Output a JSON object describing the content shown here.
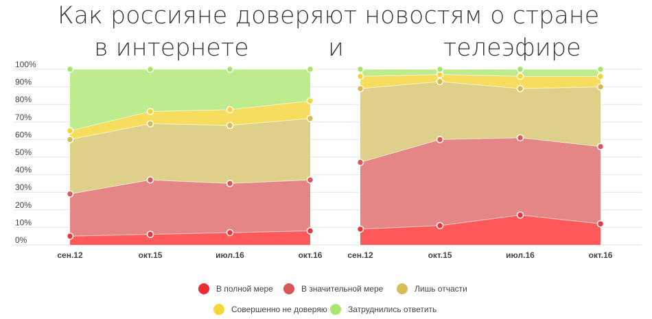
{
  "title": {
    "line1": "Как россияне доверяют новостям о стране",
    "line2_part1": "в интернете",
    "line2_part2": "и",
    "line2_part3": "телеэфире"
  },
  "chart_data": [
    {
      "type": "area",
      "stacking": "cumulative",
      "categories": [
        "сен.12",
        "окт.15",
        "июл.16",
        "окт.16"
      ],
      "ylim": [
        0,
        100
      ],
      "yticks": [
        "0%",
        "10%",
        "20%",
        "30%",
        "40%",
        "50%",
        "60%",
        "70%",
        "80%",
        "90%",
        "100%"
      ],
      "grid": true,
      "series": [
        {
          "name": "В полной мере",
          "cumulative": [
            5,
            6,
            7,
            8
          ],
          "color": "#ff5a5a",
          "marker": "#e8373e"
        },
        {
          "name": "В значительной мере",
          "cumulative": [
            29,
            37,
            35,
            37
          ],
          "color": "#e58686",
          "marker": "#d95a5a"
        },
        {
          "name": "Лишь отчасти",
          "cumulative": [
            60,
            69,
            68,
            72
          ],
          "color": "#dfd089",
          "marker": "#d4bb56"
        },
        {
          "name": "Совершенно не доверяю",
          "cumulative": [
            65,
            76,
            77,
            82
          ],
          "color": "#f6dd5e",
          "marker": "#f5d535"
        },
        {
          "name": "Затруднились ответить",
          "cumulative": [
            100,
            100,
            100,
            100
          ],
          "color": "#bdeb8e",
          "marker": "#a4e56a"
        }
      ]
    },
    {
      "type": "area",
      "stacking": "cumulative",
      "categories": [
        "сен.12",
        "окт.15",
        "июл.16",
        "окт.16"
      ],
      "ylim": [
        0,
        100
      ],
      "grid": true,
      "series": [
        {
          "name": "В полной мере",
          "cumulative": [
            9,
            11,
            17,
            12
          ],
          "color": "#ff5a5a",
          "marker": "#e8373e"
        },
        {
          "name": "В значительной мере",
          "cumulative": [
            47,
            60,
            61,
            56
          ],
          "color": "#e58686",
          "marker": "#d95a5a"
        },
        {
          "name": "Лишь отчасти",
          "cumulative": [
            89,
            93,
            89,
            90
          ],
          "color": "#dfd089",
          "marker": "#d4bb56"
        },
        {
          "name": "Совершенно не доверяю",
          "cumulative": [
            96,
            97,
            96,
            96
          ],
          "color": "#f6dd5e",
          "marker": "#f5d535"
        },
        {
          "name": "Затруднились ответить",
          "cumulative": [
            100,
            100,
            100,
            100
          ],
          "color": "#bdeb8e",
          "marker": "#a4e56a"
        }
      ]
    }
  ],
  "legend": [
    {
      "label": "В полной мере",
      "color": "#ee2b30"
    },
    {
      "label": "В значительной мере",
      "color": "#d85656"
    },
    {
      "label": "Лишь отчасти",
      "color": "#d6bd55"
    },
    {
      "label": "Совершенно не доверяю",
      "color": "#f6d735"
    },
    {
      "label": "Затруднились ответить",
      "color": "#a8e66c"
    }
  ]
}
